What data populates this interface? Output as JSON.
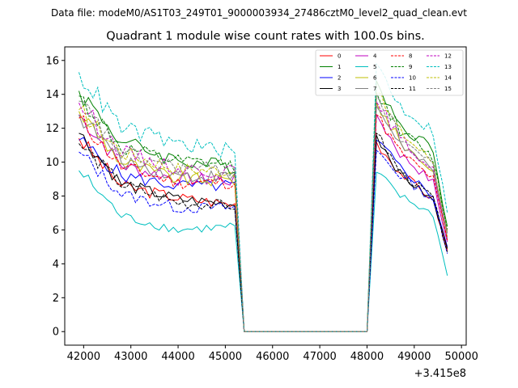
{
  "figure": {
    "suptitle": "Data file: modeM0/AS1T03_249T01_9000003934_27486cztM0_level2_quad_clean.evt"
  },
  "chart_data": {
    "type": "line",
    "title": "Quadrant 1 module wise count rates with 100.0s bins.",
    "xlabel": "",
    "ylabel": "",
    "x_offset_label": "+3.415e8",
    "xlim": [
      41600,
      50100
    ],
    "ylim": [
      -0.8,
      16.8
    ],
    "x_ticks": [
      42000,
      43000,
      44000,
      45000,
      46000,
      47000,
      48000,
      49000,
      50000
    ],
    "x_tick_labels": [
      "42000",
      "43000",
      "44000",
      "45000",
      "46000",
      "47000",
      "48000",
      "49000",
      "50000"
    ],
    "y_ticks": [
      0,
      2,
      4,
      6,
      8,
      10,
      12,
      14,
      16
    ],
    "y_tick_labels": [
      "0",
      "2",
      "4",
      "6",
      "8",
      "10",
      "12",
      "14",
      "16"
    ],
    "legend": {
      "position": "top-right",
      "ncol": 4
    },
    "segments": [
      {
        "x_start": 41900,
        "x_end": 45200
      },
      {
        "x_start": 48200,
        "x_end": 49700
      }
    ],
    "gap": {
      "x_fall_end": 45400,
      "x_rise_start": 48000,
      "value": 0
    },
    "series": [
      {
        "name": "0",
        "color": "#ff0000",
        "dash": "solid",
        "s1": [
          11.4,
          8.6,
          7.9,
          7.5
        ],
        "s2": [
          11.2,
          9.4,
          7.8,
          4.8
        ]
      },
      {
        "name": "1",
        "color": "#008000",
        "dash": "solid",
        "s1": [
          14.2,
          11.2,
          10.1,
          9.7
        ],
        "s2": [
          14.8,
          12.2,
          10.8,
          6.2
        ]
      },
      {
        "name": "2",
        "color": "#0000ff",
        "dash": "solid",
        "s1": [
          11.3,
          9.2,
          8.6,
          8.6
        ],
        "s2": [
          11.3,
          9.7,
          8.0,
          5.0
        ]
      },
      {
        "name": "3",
        "color": "#000000",
        "dash": "solid",
        "s1": [
          11.7,
          8.7,
          7.8,
          7.5
        ],
        "s2": [
          11.6,
          9.3,
          7.7,
          4.9
        ]
      },
      {
        "name": "4",
        "color": "#bf00bf",
        "dash": "solid",
        "s1": [
          12.8,
          9.8,
          9.0,
          8.9
        ],
        "s2": [
          12.8,
          10.5,
          8.8,
          5.3
        ]
      },
      {
        "name": "5",
        "color": "#00bfbf",
        "dash": "solid",
        "s1": [
          9.5,
          6.8,
          6.0,
          6.2
        ],
        "s2": [
          9.4,
          8.0,
          6.9,
          3.3
        ]
      },
      {
        "name": "6",
        "color": "#bfbf00",
        "dash": "solid",
        "s1": [
          13.0,
          10.0,
          9.0,
          8.9
        ],
        "s2": [
          13.5,
          11.2,
          9.5,
          5.6
        ]
      },
      {
        "name": "7",
        "color": "#808080",
        "dash": "solid",
        "s1": [
          12.8,
          10.1,
          9.2,
          9.1
        ],
        "s2": [
          13.3,
          11.1,
          9.4,
          5.5
        ]
      },
      {
        "name": "8",
        "color": "#ff0000",
        "dash": "dashed",
        "s1": [
          12.6,
          9.7,
          8.8,
          8.8
        ],
        "s2": [
          12.8,
          10.6,
          9.0,
          5.4
        ]
      },
      {
        "name": "9",
        "color": "#008000",
        "dash": "dashed",
        "s1": [
          13.9,
          10.8,
          10.0,
          9.8
        ],
        "s2": [
          14.1,
          11.9,
          10.2,
          6.0
        ]
      },
      {
        "name": "10",
        "color": "#0000ff",
        "dash": "dashed",
        "s1": [
          10.6,
          8.1,
          7.3,
          7.3
        ],
        "s2": [
          10.7,
          9.2,
          7.8,
          4.6
        ]
      },
      {
        "name": "11",
        "color": "#000000",
        "dash": "dashed",
        "s1": [
          11.1,
          8.7,
          7.6,
          7.4
        ],
        "s2": [
          11.7,
          9.4,
          7.9,
          4.7
        ]
      },
      {
        "name": "12",
        "color": "#bf00bf",
        "dash": "dashed",
        "s1": [
          13.5,
          10.6,
          9.6,
          9.4
        ],
        "s2": [
          13.6,
          11.4,
          9.5,
          5.8
        ]
      },
      {
        "name": "13",
        "color": "#00bfbf",
        "dash": "dashed",
        "s1": [
          15.3,
          12.0,
          11.1,
          10.6
        ],
        "s2": [
          15.8,
          13.3,
          11.8,
          7.0
        ]
      },
      {
        "name": "14",
        "color": "#bfbf00",
        "dash": "dashed",
        "s1": [
          13.1,
          10.6,
          9.6,
          9.5
        ],
        "s2": [
          14.1,
          11.8,
          10.0,
          5.9
        ]
      },
      {
        "name": "15",
        "color": "#808080",
        "dash": "dashed",
        "s1": [
          13.6,
          10.5,
          9.7,
          9.5
        ],
        "s2": [
          14.0,
          11.5,
          9.8,
          5.8
        ]
      }
    ]
  }
}
